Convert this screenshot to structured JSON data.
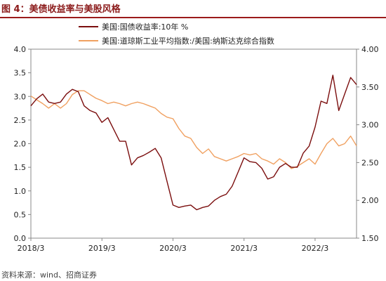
{
  "title": "图 4：美债收益率与美股风格",
  "source": "资料来源：wind、招商证券",
  "chart_data": {
    "type": "line",
    "legend_position": "top-left",
    "grid": false,
    "x_ticks": [
      "2018/3",
      "2019/3",
      "2020/3",
      "2021/3",
      "2022/3"
    ],
    "x_range": [
      "2018-03",
      "2022-10"
    ],
    "y_left": {
      "ticks": [
        "0.0",
        "0.5",
        "1.0",
        "1.5",
        "2.0",
        "2.5",
        "3.0",
        "3.5",
        "4.0"
      ],
      "range": [
        0,
        4
      ]
    },
    "y_right": {
      "ticks": [
        "1.50",
        "2.00",
        "2.50",
        "3.00",
        "3.50",
        "4.00"
      ],
      "range": [
        1.5,
        4.0
      ]
    },
    "series": [
      {
        "name": "美国:国债收益率:10年 %",
        "axis": "left",
        "color": "#7B0E0E",
        "points": [
          [
            "2018-03",
            2.8
          ],
          [
            "2018-04",
            2.95
          ],
          [
            "2018-05",
            3.05
          ],
          [
            "2018-06",
            2.88
          ],
          [
            "2018-07",
            2.85
          ],
          [
            "2018-08",
            2.88
          ],
          [
            "2018-09",
            3.05
          ],
          [
            "2018-10",
            3.15
          ],
          [
            "2018-11",
            3.1
          ],
          [
            "2018-12",
            2.8
          ],
          [
            "2019-01",
            2.7
          ],
          [
            "2019-02",
            2.65
          ],
          [
            "2019-03",
            2.45
          ],
          [
            "2019-04",
            2.55
          ],
          [
            "2019-05",
            2.3
          ],
          [
            "2019-06",
            2.05
          ],
          [
            "2019-07",
            2.05
          ],
          [
            "2019-08",
            1.55
          ],
          [
            "2019-09",
            1.7
          ],
          [
            "2019-10",
            1.75
          ],
          [
            "2019-11",
            1.82
          ],
          [
            "2019-12",
            1.9
          ],
          [
            "2020-01",
            1.7
          ],
          [
            "2020-02",
            1.2
          ],
          [
            "2020-03",
            0.7
          ],
          [
            "2020-04",
            0.65
          ],
          [
            "2020-05",
            0.68
          ],
          [
            "2020-06",
            0.7
          ],
          [
            "2020-07",
            0.6
          ],
          [
            "2020-08",
            0.65
          ],
          [
            "2020-09",
            0.68
          ],
          [
            "2020-10",
            0.8
          ],
          [
            "2020-11",
            0.88
          ],
          [
            "2020-12",
            0.93
          ],
          [
            "2021-01",
            1.1
          ],
          [
            "2021-02",
            1.4
          ],
          [
            "2021-03",
            1.7
          ],
          [
            "2021-04",
            1.62
          ],
          [
            "2021-05",
            1.6
          ],
          [
            "2021-06",
            1.48
          ],
          [
            "2021-07",
            1.25
          ],
          [
            "2021-08",
            1.3
          ],
          [
            "2021-09",
            1.5
          ],
          [
            "2021-10",
            1.58
          ],
          [
            "2021-11",
            1.5
          ],
          [
            "2021-12",
            1.5
          ],
          [
            "2022-01",
            1.8
          ],
          [
            "2022-02",
            1.95
          ],
          [
            "2022-03",
            2.35
          ],
          [
            "2022-04",
            2.9
          ],
          [
            "2022-05",
            2.85
          ],
          [
            "2022-06",
            3.45
          ],
          [
            "2022-07",
            2.7
          ],
          [
            "2022-08",
            3.05
          ],
          [
            "2022-09",
            3.4
          ],
          [
            "2022-10",
            3.25
          ]
        ]
      },
      {
        "name": "美国:道琼斯工业平均指数:/美国:纳斯达克综合指数",
        "axis": "right",
        "color": "#F0A060",
        "points": [
          [
            "2018-03",
            3.38
          ],
          [
            "2018-04",
            3.33
          ],
          [
            "2018-05",
            3.28
          ],
          [
            "2018-06",
            3.22
          ],
          [
            "2018-07",
            3.28
          ],
          [
            "2018-08",
            3.22
          ],
          [
            "2018-09",
            3.28
          ],
          [
            "2018-10",
            3.4
          ],
          [
            "2018-11",
            3.45
          ],
          [
            "2018-12",
            3.45
          ],
          [
            "2019-01",
            3.4
          ],
          [
            "2019-02",
            3.35
          ],
          [
            "2019-03",
            3.32
          ],
          [
            "2019-04",
            3.28
          ],
          [
            "2019-05",
            3.3
          ],
          [
            "2019-06",
            3.28
          ],
          [
            "2019-07",
            3.25
          ],
          [
            "2019-08",
            3.28
          ],
          [
            "2019-09",
            3.3
          ],
          [
            "2019-10",
            3.28
          ],
          [
            "2019-11",
            3.25
          ],
          [
            "2019-12",
            3.22
          ],
          [
            "2020-01",
            3.15
          ],
          [
            "2020-02",
            3.1
          ],
          [
            "2020-03",
            3.08
          ],
          [
            "2020-04",
            2.95
          ],
          [
            "2020-05",
            2.85
          ],
          [
            "2020-06",
            2.82
          ],
          [
            "2020-07",
            2.7
          ],
          [
            "2020-08",
            2.62
          ],
          [
            "2020-09",
            2.68
          ],
          [
            "2020-10",
            2.58
          ],
          [
            "2020-11",
            2.55
          ],
          [
            "2020-12",
            2.52
          ],
          [
            "2021-01",
            2.55
          ],
          [
            "2021-02",
            2.58
          ],
          [
            "2021-03",
            2.62
          ],
          [
            "2021-04",
            2.6
          ],
          [
            "2021-05",
            2.62
          ],
          [
            "2021-06",
            2.55
          ],
          [
            "2021-07",
            2.52
          ],
          [
            "2021-08",
            2.48
          ],
          [
            "2021-09",
            2.55
          ],
          [
            "2021-10",
            2.5
          ],
          [
            "2021-11",
            2.42
          ],
          [
            "2021-12",
            2.45
          ],
          [
            "2022-01",
            2.5
          ],
          [
            "2022-02",
            2.55
          ],
          [
            "2022-03",
            2.48
          ],
          [
            "2022-04",
            2.62
          ],
          [
            "2022-05",
            2.75
          ],
          [
            "2022-06",
            2.82
          ],
          [
            "2022-07",
            2.72
          ],
          [
            "2022-08",
            2.75
          ],
          [
            "2022-09",
            2.85
          ],
          [
            "2022-10",
            2.72
          ]
        ]
      }
    ]
  }
}
